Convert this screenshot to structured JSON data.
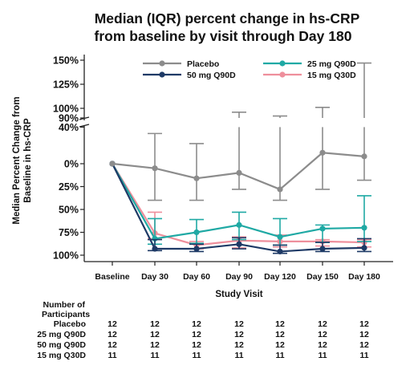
{
  "chart_data": {
    "type": "line",
    "title": "Median (IQR) percent change in hs-CRP from baseline by visit through Day 180",
    "title_lines": [
      "Median (IQR) percent change in hs-CRP",
      "from baseline by visit through Day 180"
    ],
    "xlabel": "Study Visit",
    "ylabel_lines": [
      "Median Percent Change from",
      "Baseline in hs-CRP"
    ],
    "categories": [
      "Baseline",
      "Day 30",
      "Day 60",
      "Day 90",
      "Day 120",
      "Day 150",
      "Day 180"
    ],
    "y_axis": {
      "broken": true,
      "lower_segment_ticks": [
        {
          "value": 40,
          "label": "40%"
        },
        {
          "value": 0,
          "label": "0%"
        },
        {
          "value": -25,
          "label": "25%"
        },
        {
          "value": -50,
          "label": "50%"
        },
        {
          "value": -75,
          "label": "75%"
        },
        {
          "value": -100,
          "label": "100%"
        }
      ],
      "upper_segment_ticks": [
        {
          "value": 150,
          "label": "150%"
        },
        {
          "value": 125,
          "label": "125%"
        },
        {
          "value": 100,
          "label": "100%"
        },
        {
          "value": 90,
          "label": "90%"
        }
      ]
    },
    "legend_position": "top",
    "series": [
      {
        "name": "Placebo",
        "color": "#8c8c8c",
        "median": [
          0,
          -5,
          -16,
          -10,
          -28,
          12,
          8
        ],
        "q1": [
          0,
          -40,
          -40,
          -28,
          -40,
          -28,
          -18
        ],
        "q3": [
          0,
          33,
          22,
          96,
          92,
          101,
          147
        ]
      },
      {
        "name": "50 mg Q90D",
        "color": "#1e3a66",
        "median": [
          0,
          -93,
          -93,
          -88,
          -96,
          -93,
          -92
        ],
        "q1": [
          0,
          -95,
          -96,
          -93,
          -98,
          -96,
          -96
        ],
        "q3": [
          0,
          -83,
          -88,
          -81,
          -89,
          -86,
          -82
        ]
      },
      {
        "name": "25 mg Q90D",
        "color": "#1fa9a4",
        "median": [
          0,
          -82,
          -75,
          -67,
          -80,
          -71,
          -70
        ],
        "q1": [
          0,
          -88,
          -87,
          -83,
          -89,
          -86,
          -85
        ],
        "q3": [
          0,
          -60,
          -61,
          -53,
          -60,
          -67,
          -35
        ]
      },
      {
        "name": "15 mg Q30D",
        "color": "#ee8f9c",
        "median": [
          0,
          -76,
          -89,
          -84,
          -85,
          -85,
          -86
        ],
        "q1": [
          0,
          -82,
          -93,
          -92,
          -91,
          -90,
          -91
        ],
        "q3": [
          0,
          -53,
          -85,
          -80,
          -78,
          -83,
          -83
        ]
      }
    ]
  },
  "participants_table": {
    "header_lines": [
      "Number of",
      "Participants"
    ],
    "rows": [
      {
        "label": "Placebo",
        "values": [
          "12",
          "12",
          "12",
          "12",
          "12",
          "12",
          "12"
        ]
      },
      {
        "label": "25 mg Q90D",
        "values": [
          "12",
          "12",
          "12",
          "12",
          "12",
          "12",
          "12"
        ]
      },
      {
        "label": "50 mg Q90D",
        "values": [
          "12",
          "12",
          "12",
          "12",
          "12",
          "12",
          "12"
        ]
      },
      {
        "label": "15 mg Q30D",
        "values": [
          "11",
          "11",
          "11",
          "11",
          "11",
          "11",
          "11"
        ]
      }
    ]
  }
}
